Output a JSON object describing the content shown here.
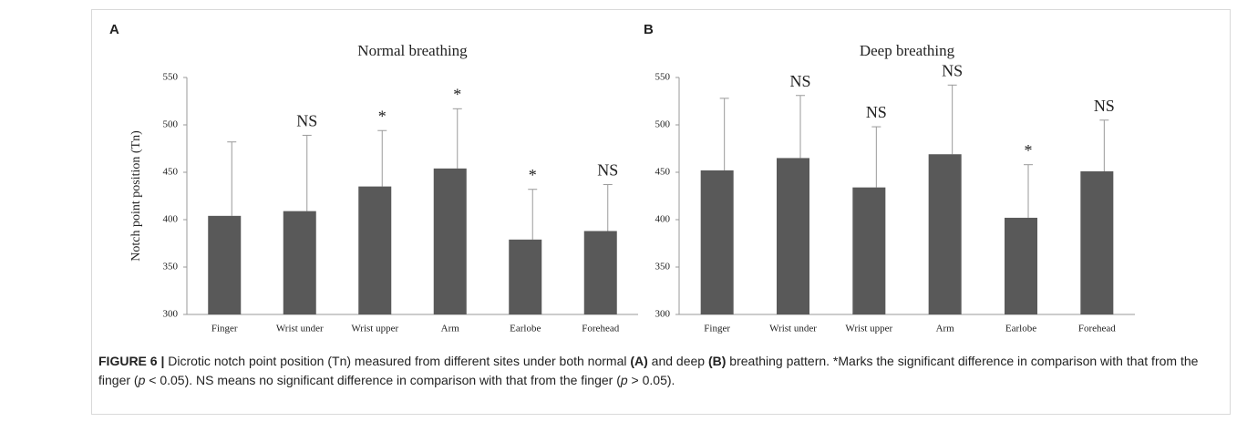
{
  "chart_data": [
    {
      "type": "bar",
      "panel": "A",
      "title": "Normal breathing",
      "ylabel": "Notch point position (Tn)",
      "categories": [
        "Finger",
        "Wrist under",
        "Wrist upper",
        "Arm",
        "Earlobe",
        "Forehead"
      ],
      "values": [
        404,
        409,
        435,
        454,
        379,
        388
      ],
      "errors": [
        78,
        80,
        59,
        63,
        53,
        49
      ],
      "annotations": [
        null,
        "NS",
        "*",
        "*",
        "*",
        "NS"
      ],
      "color": "#595959",
      "error_color": "#9a9a9a",
      "ylim": [
        300,
        550
      ],
      "yticks": [
        300,
        350,
        400,
        450,
        500,
        550
      ]
    },
    {
      "type": "bar",
      "panel": "B",
      "title": "Deep breathing",
      "categories": [
        "Finger",
        "Wrist under",
        "Wrist upper",
        "Arm",
        "Earlobe",
        "Forehead"
      ],
      "values": [
        452,
        465,
        434,
        469,
        402,
        451
      ],
      "errors": [
        76,
        66,
        64,
        73,
        56,
        54
      ],
      "annotations": [
        null,
        "NS",
        "NS",
        "NS",
        "*",
        "NS"
      ],
      "color": "#595959",
      "error_color": "#9a9a9a",
      "ylim": [
        300,
        550
      ],
      "yticks": [
        300,
        350,
        400,
        450,
        500,
        550
      ]
    }
  ],
  "caption": [
    "FIGURE 6 |",
    " Dicrotic notch point position (Tn) measured from different sites under both normal ",
    "(A)",
    " and deep ",
    "(B)",
    " breathing pattern. *Marks the significant difference in comparison with that from the finger (",
    "p",
    " < 0.05). NS means no significant difference in comparison with that from the finger (",
    "p",
    " > 0.05)."
  ]
}
